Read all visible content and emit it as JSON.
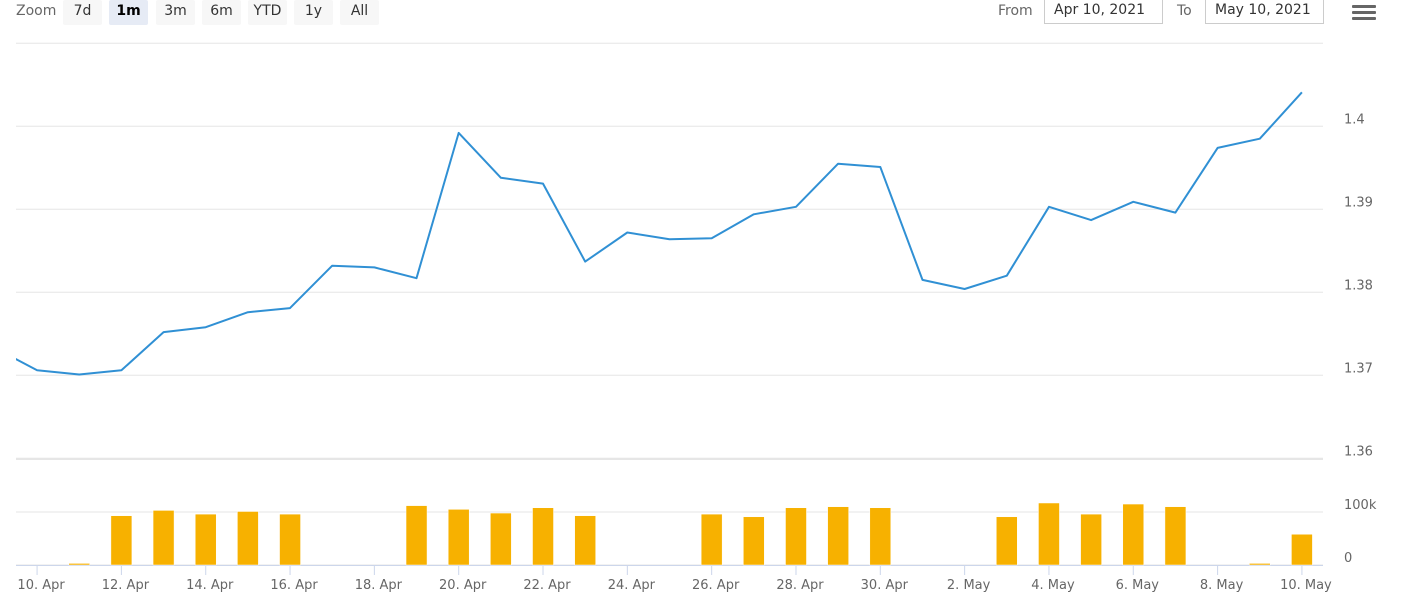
{
  "range_selector": {
    "zoom_label": "Zoom",
    "buttons": [
      "7d",
      "1m",
      "3m",
      "6m",
      "YTD",
      "1y",
      "All"
    ],
    "selected": "1m",
    "from_label": "From",
    "from_value": "Apr 10, 2021",
    "to_label": "To",
    "to_value": "May 10, 2021"
  },
  "menu_icon": "hamburger-icon",
  "chart_data": {
    "type": "line",
    "colors": {
      "line": "#3090d4",
      "volume": "#f7b100",
      "grid": "#e6e6e6"
    },
    "xaxis": {
      "type": "datetime",
      "range": [
        "2021-04-09T12:00",
        "2021-05-10T12:00"
      ],
      "tick_labels": [
        "10. Apr",
        "12. Apr",
        "14. Apr",
        "16. Apr",
        "18. Apr",
        "20. Apr",
        "22. Apr",
        "24. Apr",
        "26. Apr",
        "28. Apr",
        "30. Apr",
        "2. May",
        "4. May",
        "6. May",
        "8. May",
        "10. May"
      ],
      "tick_dates": [
        "2021-04-10",
        "2021-04-12",
        "2021-04-14",
        "2021-04-16",
        "2021-04-18",
        "2021-04-20",
        "2021-04-22",
        "2021-04-24",
        "2021-04-26",
        "2021-04-28",
        "2021-04-30",
        "2021-05-02",
        "2021-05-04",
        "2021-05-06",
        "2021-05-08",
        "2021-05-10"
      ]
    },
    "price_axis": {
      "ylim": [
        1.36,
        1.41
      ],
      "tick_labels": [
        "1.36",
        "1.37",
        "1.38",
        "1.39",
        "1.4"
      ],
      "ticks": [
        1.36,
        1.37,
        1.38,
        1.39,
        1.4,
        1.41
      ],
      "grid": true
    },
    "volume_axis": {
      "ylim": [
        0,
        200000
      ],
      "tick_labels": [
        "0",
        "100k"
      ],
      "ticks": [
        0,
        100000,
        200000
      ],
      "grid": true
    },
    "price_series": {
      "x": [
        "2021-04-09",
        "2021-04-10",
        "2021-04-11",
        "2021-04-12",
        "2021-04-13",
        "2021-04-14",
        "2021-04-15",
        "2021-04-16",
        "2021-04-17",
        "2021-04-18",
        "2021-04-19",
        "2021-04-20",
        "2021-04-21",
        "2021-04-22",
        "2021-04-23",
        "2021-04-24",
        "2021-04-25",
        "2021-04-26",
        "2021-04-27",
        "2021-04-28",
        "2021-04-29",
        "2021-04-30",
        "2021-05-01",
        "2021-05-02",
        "2021-05-03",
        "2021-05-04",
        "2021-05-05",
        "2021-05-06",
        "2021-05-07",
        "2021-05-08",
        "2021-05-09",
        "2021-05-10"
      ],
      "y": [
        1.3733,
        1.3706,
        1.3701,
        1.3706,
        1.3752,
        1.3758,
        1.3776,
        1.3781,
        1.3832,
        1.383,
        1.3817,
        1.3992,
        1.3938,
        1.3931,
        1.3837,
        1.3872,
        1.3864,
        1.3865,
        1.3894,
        1.3903,
        1.3955,
        1.3951,
        1.3815,
        1.3804,
        1.382,
        1.3903,
        1.3887,
        1.3909,
        1.3896,
        1.3974,
        1.3985,
        1.4041
      ]
    },
    "volume_series": {
      "x": [
        "2021-04-11",
        "2021-04-12",
        "2021-04-13",
        "2021-04-14",
        "2021-04-15",
        "2021-04-16",
        "2021-04-19",
        "2021-04-20",
        "2021-04-21",
        "2021-04-22",
        "2021-04-23",
        "2021-04-26",
        "2021-04-27",
        "2021-04-28",
        "2021-04-29",
        "2021-04-30",
        "2021-05-03",
        "2021-05-04",
        "2021-05-05",
        "2021-05-06",
        "2021-05-07",
        "2021-05-09",
        "2021-05-10"
      ],
      "y": [
        3000,
        93000,
        103000,
        96000,
        101000,
        96000,
        112000,
        105000,
        98000,
        108000,
        93000,
        96000,
        91000,
        108000,
        110000,
        108000,
        91000,
        117000,
        96000,
        115000,
        110000,
        3000,
        58000
      ]
    }
  }
}
